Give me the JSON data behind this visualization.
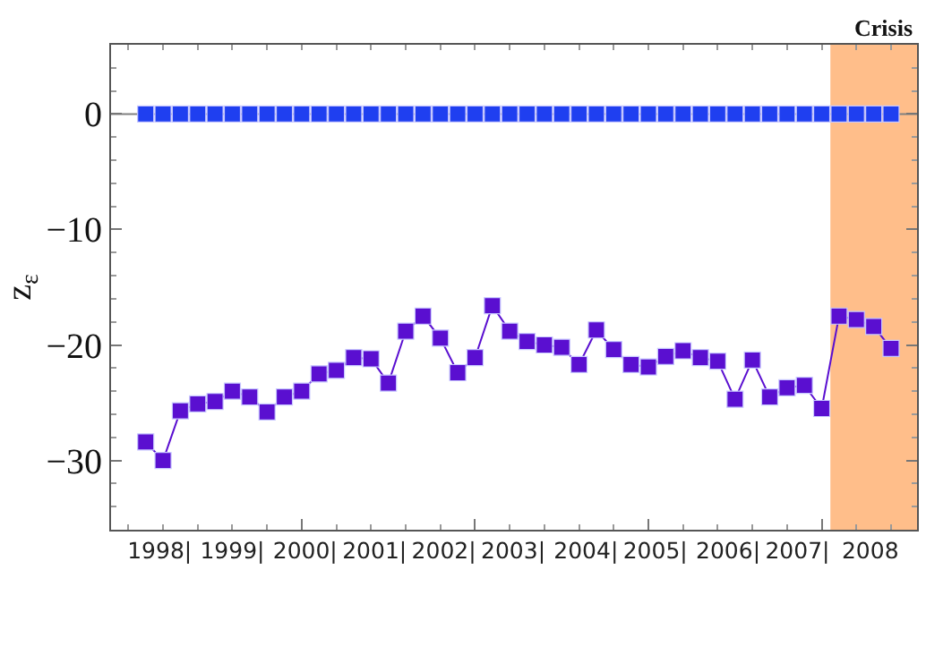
{
  "chart_data": {
    "type": "line",
    "ylabel": "z$_{ε}$",
    "x": [
      1998,
      1998.25,
      1998.5,
      1998.75,
      1999,
      1999.25,
      1999.5,
      1999.75,
      2000,
      2000.25,
      2000.5,
      2000.75,
      2001,
      2001.25,
      2001.5,
      2001.75,
      2002,
      2002.25,
      2002.5,
      2002.75,
      2003,
      2003.25,
      2003.5,
      2003.75,
      2004,
      2004.25,
      2004.5,
      2004.75,
      2005,
      2005.25,
      2005.5,
      2005.75,
      2006,
      2006.25,
      2006.5,
      2006.75,
      2007,
      2007.25,
      2007.5,
      2007.75,
      2008,
      2008.25,
      2008.5,
      2008.75
    ],
    "series": [
      {
        "type": "scatter",
        "color": "#1f3ff0",
        "values": [
          0,
          0,
          0,
          0,
          0,
          0,
          0,
          0,
          0,
          0,
          0,
          0,
          0,
          0,
          0,
          0,
          0,
          0,
          0,
          0,
          0,
          0,
          0,
          0,
          0,
          0,
          0,
          0,
          0,
          0,
          0,
          0,
          0,
          0,
          0,
          0,
          0,
          0,
          0,
          0,
          0,
          0,
          0,
          0
        ]
      },
      {
        "color": "#5a0fd0",
        "values": [
          -28.4,
          -30.0,
          -25.7,
          -25.1,
          -24.9,
          -24.0,
          -24.5,
          -25.8,
          -24.5,
          -24.0,
          -22.5,
          -22.2,
          -21.1,
          -21.2,
          -23.3,
          -18.8,
          -17.5,
          -19.4,
          -22.4,
          -21.1,
          -16.6,
          -18.8,
          -19.7,
          -20.0,
          -20.2,
          -21.7,
          -18.7,
          -20.4,
          -21.7,
          -21.9,
          -21.0,
          -20.5,
          -21.1,
          -21.4,
          -24.7,
          -21.3,
          -24.5,
          -23.7,
          -23.5,
          -25.5,
          -17.5,
          -17.8,
          -18.4,
          -20.3
        ]
      }
    ],
    "xlim": [
      1997.5,
      2009.125
    ],
    "xticks": [
      {
        "value": 1998.2,
        "label": "1998|"
      },
      {
        "value": 1999.25,
        "label": "1999|"
      },
      {
        "value": 2000.3,
        "label": "2000|"
      },
      {
        "value": 2001.3,
        "label": "2001|"
      },
      {
        "value": 2002.3,
        "label": "2002|"
      },
      {
        "value": 2003.3,
        "label": "2003|"
      },
      {
        "value": 2004.35,
        "label": "2004|"
      },
      {
        "value": 2005.35,
        "label": "2005|"
      },
      {
        "value": 2006.4,
        "label": "2006|"
      },
      {
        "value": 2007.4,
        "label": "2007|"
      },
      {
        "value": 2008.45,
        "label": "2008"
      },
      {
        "value": 2000.25,
        "label": null
      },
      {
        "value": 2002.75,
        "label": null
      },
      {
        "value": 2005.25,
        "label": null
      },
      {
        "value": 2007.75,
        "label": null
      }
    ],
    "ylim": [
      -36,
      6
    ],
    "yticks": [
      {
        "value": 0,
        "label": "0"
      },
      {
        "value": -10,
        "label": "−10"
      },
      {
        "value": -20,
        "label": "−20"
      },
      {
        "value": -30,
        "label": "−30"
      }
    ],
    "bands": [
      {
        "axis": "x",
        "from": 2007.875,
        "to": 2009.125,
        "label": "Crisis",
        "color": "#ffbe8a"
      }
    ],
    "ref_lines": [
      {
        "axis": "y",
        "value": 0,
        "color": "#808080"
      }
    ],
    "marker": "square",
    "line_style": "solid",
    "grid": false
  }
}
